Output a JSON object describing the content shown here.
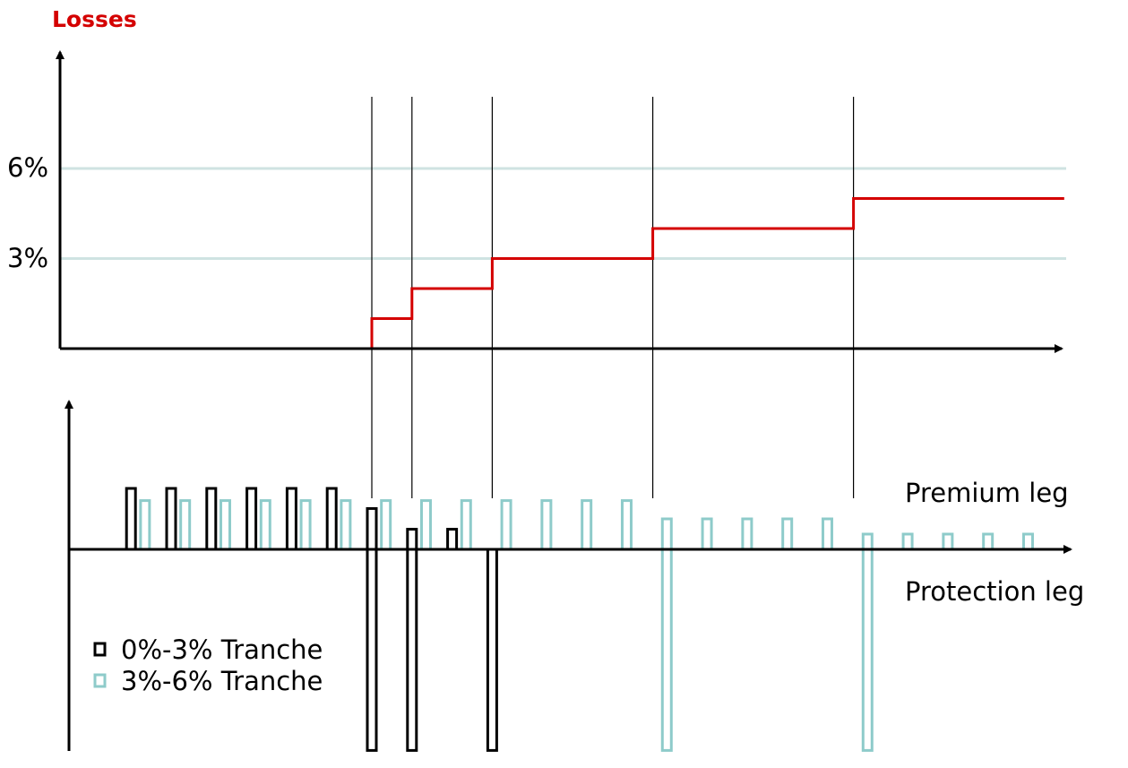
{
  "chart_data": [
    {
      "type": "line",
      "title": "Losses",
      "ytick_labels": [
        "3%",
        "6%"
      ],
      "yticks": [
        3,
        6
      ],
      "ylim": [
        0,
        9
      ],
      "x": [
        0,
        15.0,
        17.0,
        21.0,
        29.0,
        39.0,
        49.5
      ],
      "y": [
        0,
        1,
        2,
        3,
        4,
        5,
        5
      ],
      "step": "post",
      "default_events": [
        15.0,
        17.0,
        21.0,
        29.0,
        39.0
      ],
      "grid": true
    },
    {
      "type": "bar",
      "legend_position": "bottom-left",
      "annotations": [
        "Premium leg",
        "Protection leg"
      ],
      "series": [
        {
          "name": "0%-3% Tranche",
          "x": [
            3,
            5,
            7,
            9,
            11,
            13,
            15,
            17,
            19
          ],
          "premium": [
            1,
            1,
            1,
            1,
            1,
            1,
            0.67,
            0.33,
            0.33
          ],
          "protection_x": [
            15.0,
            17.0,
            21.0
          ],
          "protection": [
            -3.3,
            -3.3,
            -3.3
          ]
        },
        {
          "name": "3%-6% Tranche",
          "x": [
            3.7,
            5.7,
            7.7,
            9.7,
            11.7,
            13.7,
            15.7,
            17.7,
            19.7,
            21.7,
            23.7,
            25.7,
            27.7,
            29.7,
            31.7,
            33.7,
            35.7,
            37.7,
            39.7,
            41.7,
            43.7,
            45.7,
            47.7
          ],
          "premium": [
            0.8,
            0.8,
            0.8,
            0.8,
            0.8,
            0.8,
            0.8,
            0.8,
            0.8,
            0.8,
            0.8,
            0.8,
            0.8,
            0.5,
            0.5,
            0.5,
            0.5,
            0.5,
            0.25,
            0.25,
            0.25,
            0.25,
            0.25
          ],
          "protection_x": [
            29.7,
            39.7
          ],
          "protection": [
            -3.3,
            -3.3
          ]
        }
      ],
      "colors": {
        "tranche1": "#000000",
        "tranche2": "#8ecbca",
        "loss_line": "#d40000",
        "gridline": "#cfe3e2"
      }
    }
  ]
}
